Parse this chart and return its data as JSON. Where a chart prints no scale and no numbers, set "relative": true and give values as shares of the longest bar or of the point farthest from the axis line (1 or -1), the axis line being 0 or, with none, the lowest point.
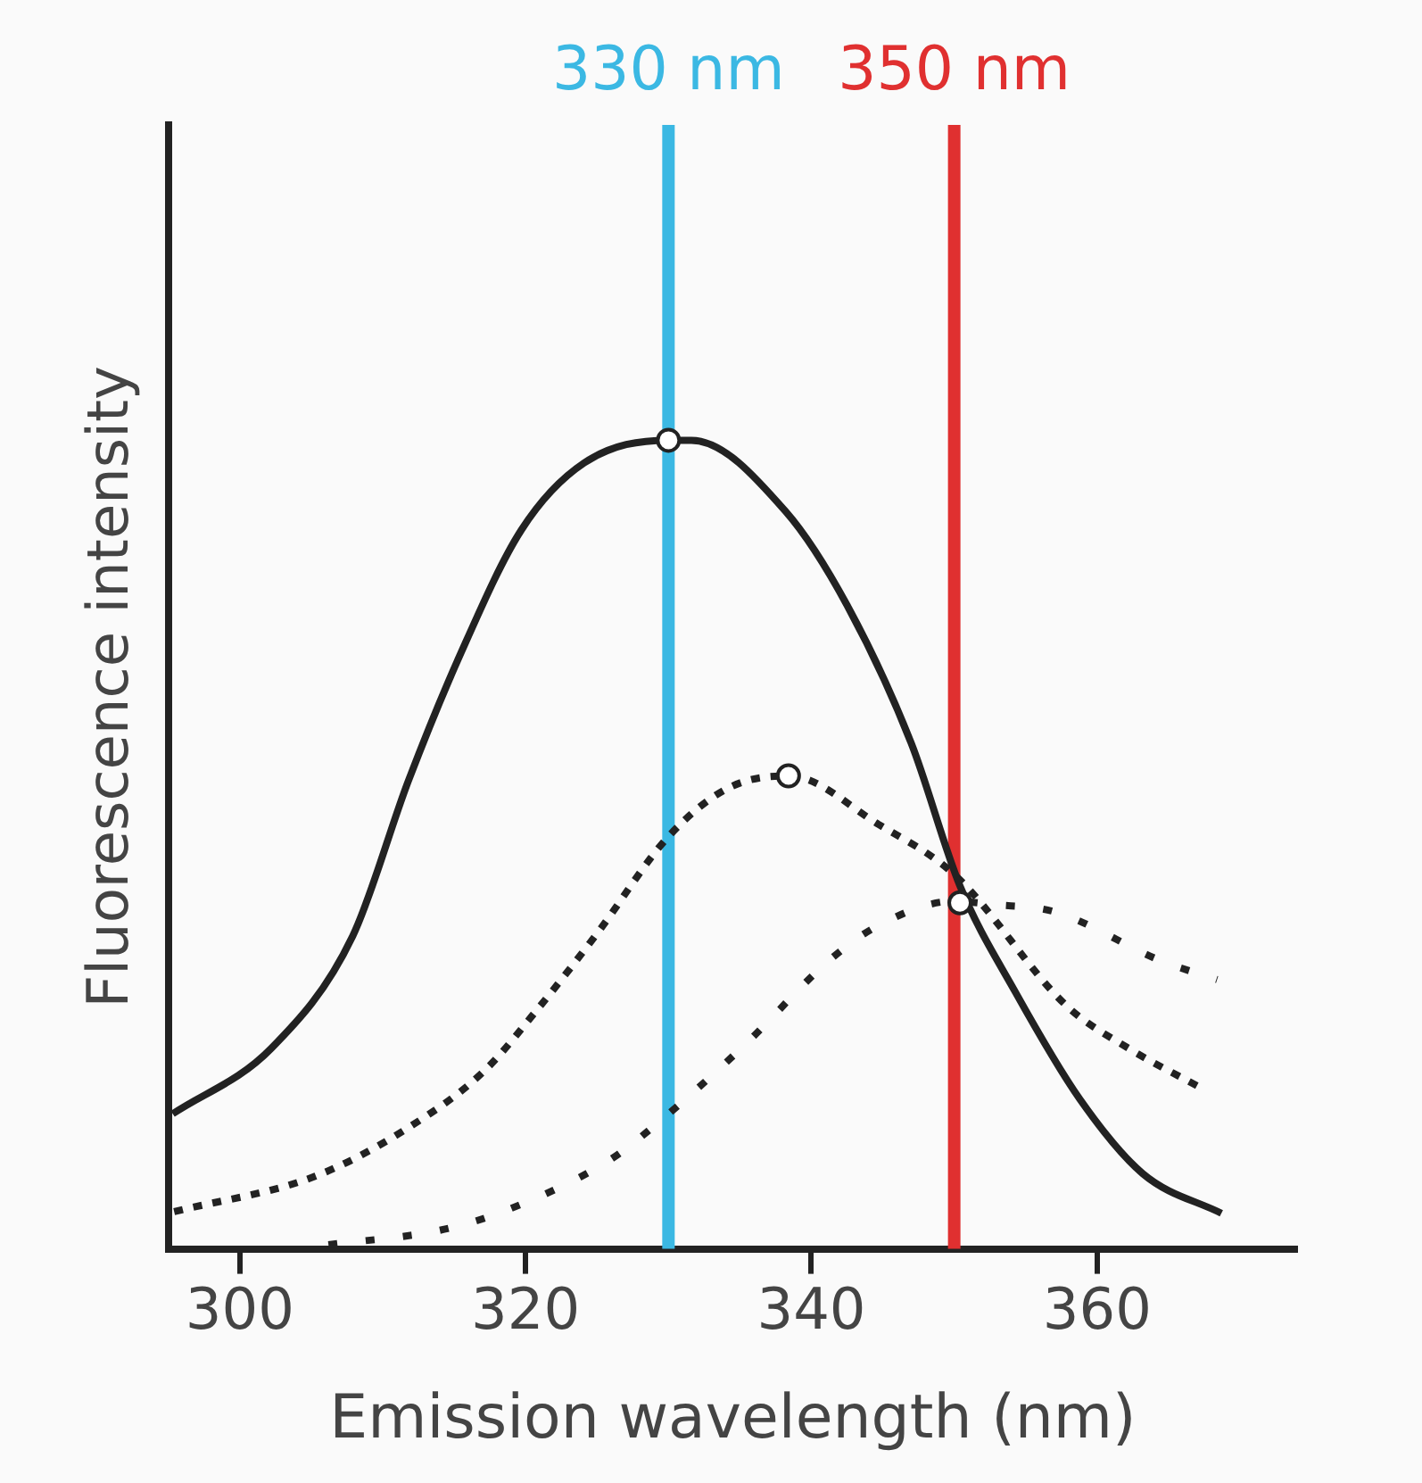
{
  "chart_data": {
    "type": "line",
    "relative": true,
    "xlabel": "Emission wavelength (nm)",
    "ylabel": "Fluorescence intensity",
    "xlim": [
      295,
      374
    ],
    "xticks": [
      300,
      320,
      340,
      360
    ],
    "grid": false,
    "legend": false,
    "series": [
      {
        "color": "#222222",
        "line_style": "solid",
        "marker": "none",
        "x": [
          295.3,
          302.2,
          307.9,
          311.8,
          315.4,
          319.7,
          324.1,
          330,
          331.6,
          338.2,
          342.5,
          347,
          350.4,
          354.3,
          358.8,
          363.2,
          368.7
        ],
        "values": [
          0.167,
          0.248,
          0.387,
          0.579,
          0.734,
          0.889,
          0.972,
          1,
          1,
          0.912,
          0.796,
          0.625,
          0.449,
          0.317,
          0.185,
          0.093,
          0.044
        ]
      },
      {
        "color": "#222222",
        "line_style": "dotted",
        "marker": "none",
        "x": [
          295.4,
          305.3,
          311.8,
          317.1,
          321,
          325,
          330,
          334.2,
          338.4,
          344.7,
          350,
          357.9,
          362.2,
          367.5
        ],
        "values": [
          0.046,
          0.09,
          0.15,
          0.22,
          0.3,
          0.39,
          0.51,
          0.57,
          0.585,
          0.525,
          0.463,
          0.3,
          0.248,
          0.197
        ]
      },
      {
        "color": "#222222",
        "line_style": "dashed",
        "marker": "none",
        "x": [
          306.2,
          314,
          318.4,
          325.9,
          329.2,
          335.5,
          341.2,
          344.7,
          350,
          352.6,
          357,
          364.5,
          368.4
        ],
        "values": [
          0.005,
          0.023,
          0.046,
          0.11,
          0.155,
          0.255,
          0.356,
          0.4,
          0.43,
          0.426,
          0.417,
          0.356,
          0.333
        ]
      },
      {
        "type": "scatter",
        "color": "#222222",
        "marker": "circle",
        "x": [
          330,
          338.4,
          350.4
        ],
        "values": [
          1,
          0.585,
          0.428
        ]
      }
    ],
    "ref_lines": [
      {
        "axis": "x",
        "value": 330,
        "label": "330 nm",
        "color": "#3bb8e3"
      },
      {
        "axis": "x",
        "value": 350,
        "label": "350 nm",
        "color": "#e03030"
      }
    ]
  }
}
